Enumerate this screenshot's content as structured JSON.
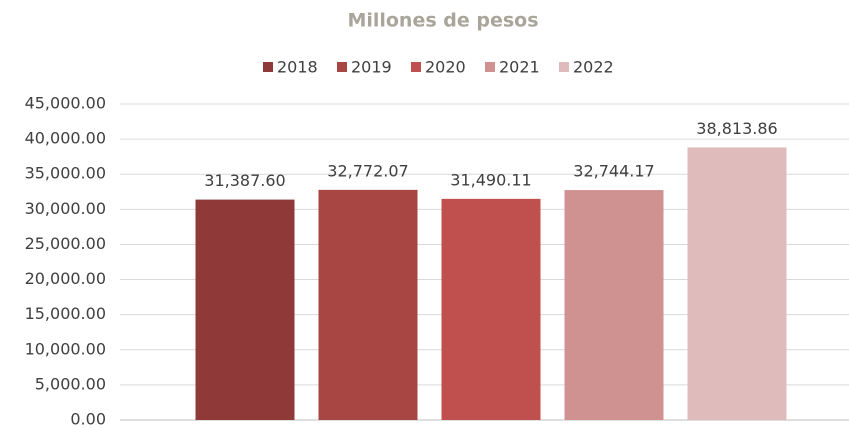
{
  "chart_data": {
    "type": "bar",
    "title": "Millones de pesos",
    "categories": [
      null
    ],
    "series": [
      {
        "name": "2018",
        "color": "#8f3a38",
        "values": [
          31387.6
        ],
        "value_labels": [
          "31,387.60"
        ]
      },
      {
        "name": "2019",
        "color": "#a84644",
        "values": [
          32772.07
        ],
        "value_labels": [
          "32,772.07"
        ]
      },
      {
        "name": "2020",
        "color": "#c0504d",
        "values": [
          31490.11
        ],
        "value_labels": [
          "31,490.11"
        ]
      },
      {
        "name": "2021",
        "color": "#d09291",
        "values": [
          32744.17
        ],
        "value_labels": [
          "32,744.17"
        ]
      },
      {
        "name": "2022",
        "color": "#e0bbbb",
        "values": [
          38813.86
        ],
        "value_labels": [
          "38,813.86"
        ]
      }
    ],
    "ylim": [
      0,
      45000
    ],
    "yticks": [
      {
        "value": 0,
        "label": "0.00"
      },
      {
        "value": 5000,
        "label": "5,000.00"
      },
      {
        "value": 10000,
        "label": "10,000.00"
      },
      {
        "value": 15000,
        "label": "15,000.00"
      },
      {
        "value": 20000,
        "label": "20,000.00"
      },
      {
        "value": 25000,
        "label": "25,000.00"
      },
      {
        "value": 30000,
        "label": "30,000.00"
      },
      {
        "value": 35000,
        "label": "35,000.00"
      },
      {
        "value": 40000,
        "label": "40,000.00"
      },
      {
        "value": 45000,
        "label": "45,000.00"
      }
    ],
    "grid": true,
    "legend": "top"
  }
}
